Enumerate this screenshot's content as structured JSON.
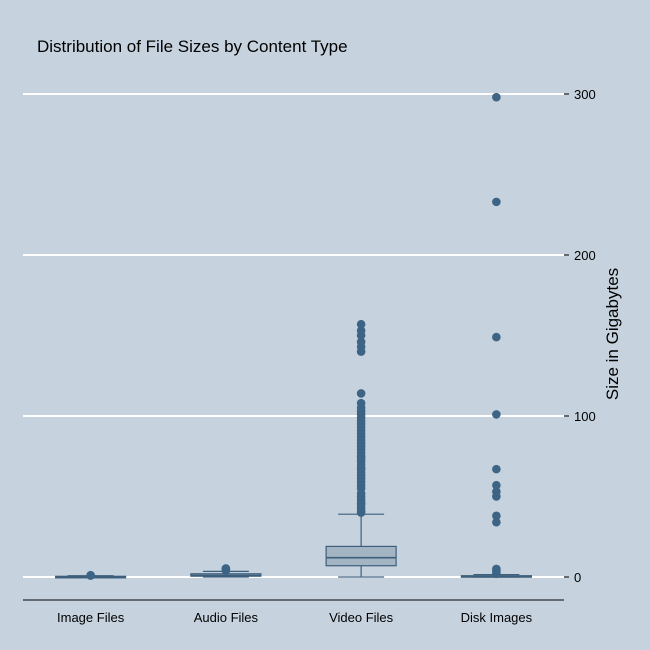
{
  "colors": {
    "background": "#c6d3df",
    "gridline": "#ffffff",
    "box_fill": "#a3b5c3",
    "box_stroke": "#3d5f7c",
    "outlier": "#3d6484",
    "axis_line": "#000000"
  },
  "chart_data": {
    "type": "box",
    "title": "Distribution of File Sizes by Content Type",
    "xlabel": "",
    "ylabel": "Size in Gigabytes",
    "ylim": [
      -7,
      315
    ],
    "yticks": [
      0,
      100,
      200,
      300
    ],
    "y_axis_side": "right",
    "grid": "horizontal",
    "legend": "none",
    "categories": [
      "Image Files",
      "Audio Files",
      "Video Files",
      "Disk Images"
    ],
    "boxes": [
      {
        "category": "Image Files",
        "whisker_low": 0,
        "q1": 0.1,
        "median": 0.2,
        "q3": 0.4,
        "whisker_high": 0.8,
        "outliers": [
          0.9,
          1.1
        ]
      },
      {
        "category": "Audio Files",
        "whisker_low": 0,
        "q1": 0.5,
        "median": 1.0,
        "q3": 2.0,
        "whisker_high": 3.5,
        "outliers": [
          4.0,
          4.6,
          5.3
        ]
      },
      {
        "category": "Video Files",
        "whisker_low": 0,
        "q1": 7,
        "median": 12,
        "q3": 19,
        "whisker_high": 39,
        "outliers": [
          40,
          41,
          43,
          45,
          46,
          48,
          50,
          52,
          55,
          57,
          59,
          61,
          63,
          65,
          67,
          68,
          70,
          72,
          74,
          75,
          77,
          79,
          81,
          83,
          85,
          87,
          89,
          91,
          93,
          95,
          97,
          99,
          101,
          103,
          105,
          108,
          114,
          140,
          143,
          146,
          150,
          153,
          157
        ]
      },
      {
        "category": "Disk Images",
        "whisker_low": 0,
        "q1": 0.2,
        "median": 0.4,
        "q3": 0.8,
        "whisker_high": 1.5,
        "outliers": [
          2,
          3.5,
          5,
          34,
          38,
          50,
          53,
          57,
          67,
          101,
          149,
          233,
          298
        ]
      }
    ]
  }
}
